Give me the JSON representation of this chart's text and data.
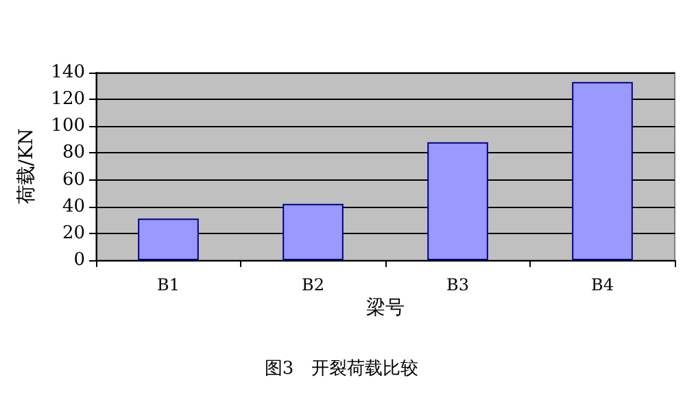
{
  "chart_data": {
    "type": "bar",
    "title": "图3　开裂荷载比较",
    "xlabel": "梁号",
    "ylabel": "荷载/KN",
    "categories": [
      "B1",
      "B2",
      "B3",
      "B4"
    ],
    "series": [
      {
        "color": "#9999ff",
        "values": [
          31,
          42,
          88,
          133
        ]
      }
    ],
    "ylim": [
      0,
      140
    ],
    "yticks": [
      0,
      20,
      40,
      60,
      80,
      100,
      120,
      140
    ],
    "grid": "y"
  }
}
